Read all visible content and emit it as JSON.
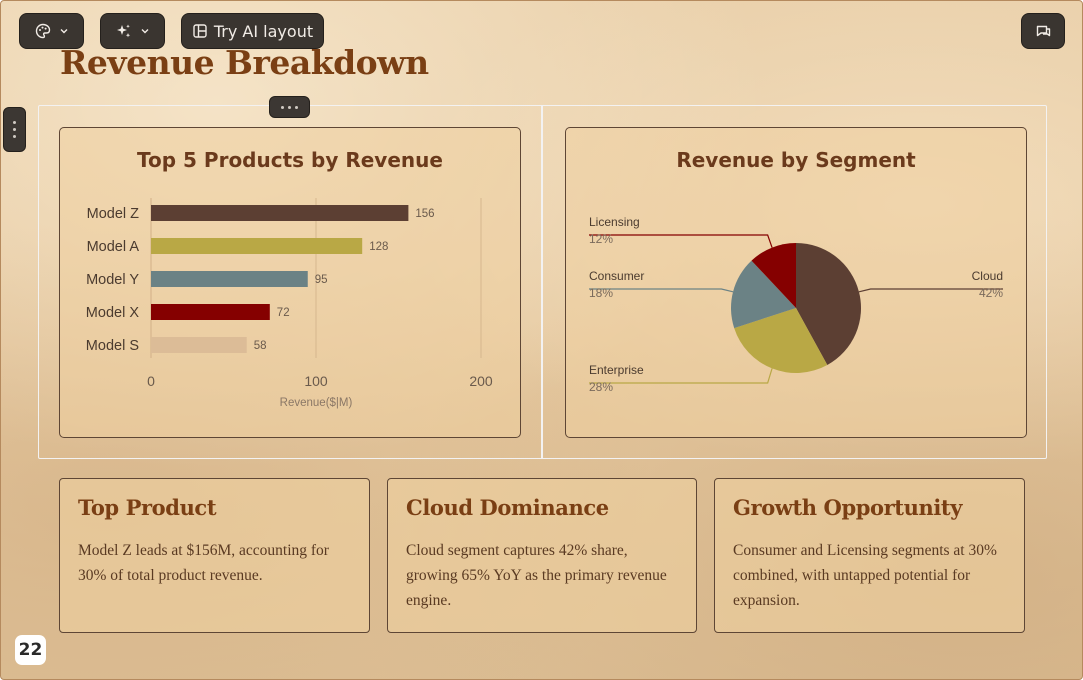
{
  "toolbar": {
    "theme_icon": "palette-icon",
    "ai_icon": "sparkle-icon",
    "layout_icon": "layout-icon",
    "try_ai_layout_label": "Try AI layout",
    "comment_icon": "comment-icon"
  },
  "slide": {
    "title": "Revenue Breakdown",
    "page_number": "22"
  },
  "colors": {
    "model_z": "#5c3f33",
    "model_a": "#b9a845",
    "model_y": "#6b8285",
    "model_x": "#850000",
    "model_s": "#dcbc97",
    "title": "#7a3f14",
    "card_border": "#5e4635"
  },
  "chart_data": [
    {
      "type": "bar",
      "orientation": "horizontal",
      "title": "Top 5 Products by Revenue",
      "categories": [
        "Model Z",
        "Model A",
        "Model Y",
        "Model X",
        "Model S"
      ],
      "values": [
        156,
        128,
        95,
        72,
        58
      ],
      "data_labels": [
        "156",
        "128",
        "95",
        "72",
        "58"
      ],
      "colors": [
        "#5c3f33",
        "#b9a845",
        "#6b8285",
        "#850000",
        "#dcbc97"
      ],
      "xlabel": "Revenue($|M)",
      "ylabel": "",
      "xlim": [
        0,
        200
      ],
      "xticks": [
        0,
        100,
        200
      ],
      "xtick_labels": [
        "0",
        "100",
        "200"
      ],
      "grid": true
    },
    {
      "type": "pie",
      "title": "Revenue by Segment",
      "categories": [
        "Cloud",
        "Enterprise",
        "Consumer",
        "Licensing"
      ],
      "values": [
        42,
        28,
        18,
        12
      ],
      "value_labels": [
        "42%",
        "28%",
        "18%",
        "12%"
      ],
      "colors": [
        "#5c3f33",
        "#b9a845",
        "#6b8285",
        "#850000"
      ],
      "legend": "none"
    }
  ],
  "insights": [
    {
      "title": "Top Product",
      "text": "Model Z leads at $156M, accounting for 30% of total product revenue."
    },
    {
      "title": "Cloud Dominance",
      "text": "Cloud segment captures 42% share, growing 65% YoY as the primary revenue engine."
    },
    {
      "title": "Growth Opportunity",
      "text": "Consumer and Licensing segments at 30% combined, with untapped potential for expansion."
    }
  ]
}
